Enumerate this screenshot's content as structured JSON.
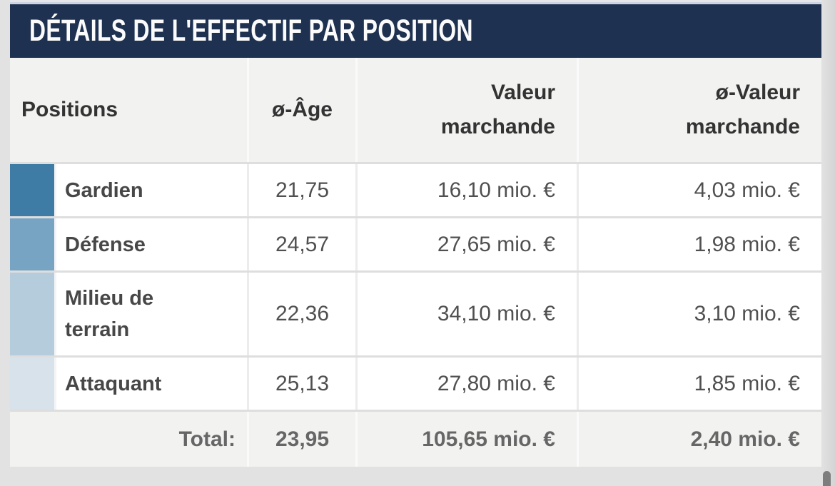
{
  "panel": {
    "title": "DÉTAILS DE L'EFFECTIF PAR POSITION",
    "title_bg": "#1e3150",
    "title_color": "#fbfbfb"
  },
  "table": {
    "columns": [
      {
        "label": "Positions",
        "align": "left"
      },
      {
        "label": "ø-Âge",
        "align": "center"
      },
      {
        "label": "Valeur marchande",
        "align": "right"
      },
      {
        "label": "ø-Valeur marchande",
        "align": "right"
      }
    ],
    "rows": [
      {
        "position": "Gardien",
        "swatch": "#3e7ca6",
        "age": "21,75",
        "value": "16,10 mio. €",
        "avg_value": "4,03 mio. €"
      },
      {
        "position": "Défense",
        "swatch": "#78a4c4",
        "age": "24,57",
        "value": "27,65 mio. €",
        "avg_value": "1,98 mio. €"
      },
      {
        "position": "Milieu de terrain",
        "swatch": "#b5ccdd",
        "age": "22,36",
        "value": "34,10 mio. €",
        "avg_value": "3,10 mio. €"
      },
      {
        "position": "Attaquant",
        "swatch": "#d7e2eb",
        "age": "25,13",
        "value": "27,80 mio. €",
        "avg_value": "1,85 mio. €"
      }
    ],
    "total": {
      "label": "Total:",
      "age": "23,95",
      "value": "105,65 mio. €",
      "avg_value": "2,40 mio. €"
    }
  },
  "colors": {
    "header_bg": "#1e3150",
    "row_bg": "#ffffff",
    "head_cell_bg": "#f2f2f1",
    "page_bg": "#e2e2e2"
  },
  "scrollbar": {
    "thumb_color": "#7d7d7d"
  }
}
